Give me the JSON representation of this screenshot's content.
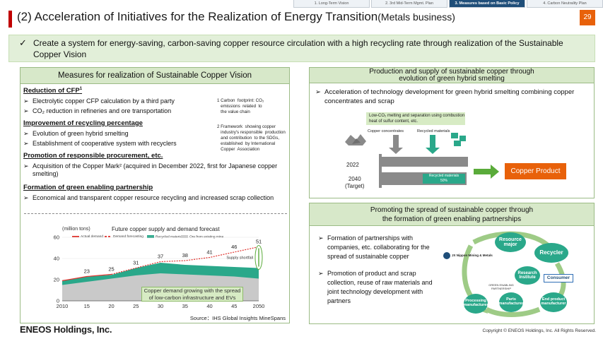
{
  "nav_tabs": [
    "1. Long-Term Vision",
    "2. 3rd Mid-Term Mgmt. Plan",
    "3. Measures based on Basic Policy",
    "4. Carbon Neutrality Plan"
  ],
  "nav_active_index": 2,
  "title": "(2)  Acceleration of Initiatives for the Realization of Energy Transition",
  "title_sub": "(Metals business)",
  "page_number": "29",
  "banner": {
    "check": "✓",
    "text": "Create a system for energy-saving, carbon-saving copper resource circulation with a high recycling rate through realization of the Sustainable Copper Vision"
  },
  "left_panel": {
    "title": "Measures for realization  of Sustainable  Copper Vision",
    "sections": [
      {
        "title": "Reduction of CFP",
        "sup": "1",
        "items": [
          "Electrolytic copper CFP calculation by a third party",
          "CO₂ reduction in refineries and ore transportation"
        ]
      },
      {
        "title": "Improvement of recycling percentage",
        "items": [
          "Evolution of green hybrid smelting",
          "Establishment of cooperative system with recyclers"
        ]
      },
      {
        "title": "Promotion of responsible procurement, etc.",
        "items": [
          "Acquisition of the Copper Mark² (acquired in December 2022, first for Japanese copper smelting)"
        ]
      },
      {
        "title": "Formation of green enabling partnership",
        "items": [
          "Economical and transparent copper resource recycling and increased scrap collection"
        ]
      }
    ],
    "notes": [
      "1 Carbon  footprint: CO₂\n   emissions  related  to\n   the value chain",
      "2 Framework  showing copper\n   industry's responsible  production\n   and contribution  to the SDGs,\n   established  by International\n   Copper  Association"
    ],
    "arrow": "➢"
  },
  "chart_data": {
    "type": "area",
    "title": "Future copper supply and demand forecast",
    "ylabel": "(million tons)",
    "x": [
      2010,
      2015,
      2020,
      2025,
      2030,
      2035,
      2040,
      2045,
      2050
    ],
    "xticklabels": [
      "2010",
      "15",
      "20",
      "25",
      "30",
      "35",
      "40",
      "45",
      "2050"
    ],
    "ylim": [
      0,
      60
    ],
    "yticks": [
      0,
      20,
      40,
      60
    ],
    "legend": [
      "Actual demand",
      "Demand forecasting",
      "Recycled material",
      "Ore from existing mine"
    ],
    "series": [
      {
        "name": "Actual demand",
        "x": [
          2010,
          2015,
          2020
        ],
        "values": [
          19,
          23,
          25
        ]
      },
      {
        "name": "Demand forecasting",
        "x": [
          2020,
          2025,
          2030,
          2035,
          2040,
          2045,
          2050
        ],
        "values": [
          25,
          31,
          37,
          38,
          41,
          46,
          51
        ]
      },
      {
        "name": "Recycled material",
        "x": [
          2010,
          2015,
          2020,
          2025,
          2030,
          2035,
          2040,
          2045,
          2050
        ],
        "values": [
          19,
          23,
          24.5,
          31,
          36,
          34,
          33,
          32,
          31
        ]
      },
      {
        "name": "Ore from existing mine",
        "x": [
          2010,
          2015,
          2020,
          2025,
          2030,
          2035,
          2040,
          2045,
          2050
        ],
        "values": [
          15,
          18,
          21,
          24,
          26,
          25,
          24,
          23,
          21
        ]
      }
    ],
    "data_labels": [
      {
        "x": 2015,
        "value": 23
      },
      {
        "x": 2020,
        "value": 25
      },
      {
        "x": 2025,
        "value": 31
      },
      {
        "x": 2030,
        "value": 37
      },
      {
        "x": 2035,
        "value": 38
      },
      {
        "x": 2040,
        "value": 41
      },
      {
        "x": 2045,
        "value": 46
      },
      {
        "x": 2050,
        "value": 51
      }
    ],
    "annotation": "Supply shortfall",
    "callout": "Copper demand growing with the spread of low-carbon infrastructure and EVs",
    "source": "Source：IHS Global Insights MineSpans",
    "colors": {
      "demand": "#e0342f",
      "recycled": "#2aa88a",
      "ore": "#c9c9c9"
    }
  },
  "right_top": {
    "title_line1": "Production and supply of sustainable copper through",
    "title_line2": "evolution of green hybrid smelting",
    "bullet": "Acceleration of technology  development  for green hybrid smelting combining  copper concentrates  and scrap",
    "lowco2": "Low-CO₂ melting and separation using combustion heat of sulfur content, etc.",
    "label_concentrates": "Copper concentrates",
    "label_recycled": "Recycled materials",
    "year_2022": "2022",
    "year_2040": "2040",
    "year_target": "(Target)",
    "recycled_bar_label": "Recycled materials",
    "recycled_bar_pct": "50%",
    "copper_product": "Copper Product"
  },
  "right_bottom": {
    "title_line1": "Promoting the spread of sustainable copper through",
    "title_line2": "the formation of green enabling partnerships",
    "bullets": [
      "Formation of partnerships with companies, etc. collaborating for the spread of sustainable copper",
      "Promotion of product and scrap collection, reuse of raw materials and joint technology development with partners"
    ],
    "jx": "JX Nippon Mining & Metals",
    "nodes": {
      "resource_major": "Resource major",
      "recycler": "Recycler",
      "research": "Research Institute",
      "consumer": "Consumer",
      "end_product": "End product manufacturer",
      "parts": "Parts manufacturer",
      "processing": "Processing manufacturer"
    },
    "gep": "GREEN ENABLING PARTNERSHIP"
  },
  "footer": {
    "logo": "ENEOS Holdings, Inc.",
    "copyright": "Copyright © ENEOS  Holdings, Inc. All Rights Reserved."
  }
}
